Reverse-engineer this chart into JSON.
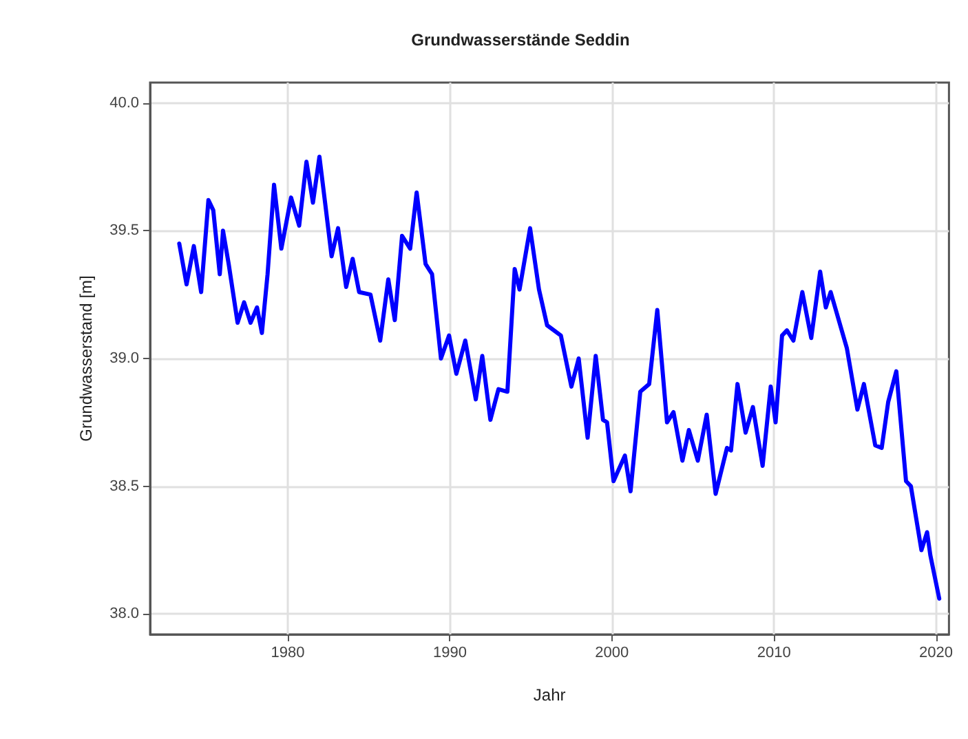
{
  "chart_data": {
    "type": "line",
    "title": "Grundwasserstände Seddin",
    "xlabel": "Jahr",
    "ylabel": "Grundwasserstand [m]",
    "xlim": [
      1971.5,
      2020.8
    ],
    "xticks": [
      1980,
      1990,
      2000,
      2010,
      2020
    ],
    "ylim": [
      37.92,
      40.08
    ],
    "yticks": [
      {
        "value": 38,
        "label": "38.0"
      },
      38.5,
      {
        "value": 39,
        "label": "39.0"
      },
      39.5,
      {
        "value": 40,
        "label": "40.0"
      }
    ],
    "grid": true,
    "marker": "none",
    "line_style": "solid",
    "series": [
      {
        "color": "#0000ff",
        "x": [
          1973.3,
          1973.75,
          1974.2,
          1974.65,
          1975.1,
          1975.4,
          1975.8,
          1976.0,
          1976.35,
          1976.9,
          1977.3,
          1977.7,
          1978.1,
          1978.4,
          1978.75,
          1979.15,
          1979.6,
          1980.2,
          1980.7,
          1981.15,
          1981.55,
          1981.95,
          1982.3,
          1982.7,
          1983.1,
          1983.6,
          1984.0,
          1984.4,
          1985.1,
          1985.7,
          1986.2,
          1986.6,
          1987.05,
          1987.55,
          1987.95,
          1988.5,
          1988.9,
          1989.45,
          1989.95,
          1990.4,
          1990.95,
          1991.6,
          1992.0,
          1992.5,
          1993.0,
          1993.55,
          1994.0,
          1994.3,
          1994.95,
          1995.5,
          1996.0,
          1996.85,
          1997.5,
          1997.95,
          1998.5,
          1999.0,
          1999.45,
          1999.7,
          2000.1,
          2000.8,
          2001.15,
          2001.75,
          2002.3,
          2002.8,
          2003.4,
          2003.8,
          2004.35,
          2004.75,
          2005.3,
          2005.85,
          2006.4,
          2007.1,
          2007.35,
          2007.75,
          2008.25,
          2008.7,
          2009.3,
          2009.8,
          2010.1,
          2010.5,
          2010.8,
          2011.2,
          2011.75,
          2012.3,
          2012.85,
          2013.2,
          2013.5,
          2014.5,
          2015.15,
          2015.55,
          2016.25,
          2016.65,
          2017.05,
          2017.55,
          2018.15,
          2018.45,
          2019.1,
          2019.45,
          2019.65,
          2020.2
        ],
        "values": [
          39.45,
          39.29,
          39.44,
          39.26,
          39.62,
          39.58,
          39.33,
          39.5,
          39.37,
          39.14,
          39.22,
          39.14,
          39.2,
          39.1,
          39.33,
          39.68,
          39.43,
          39.63,
          39.52,
          39.77,
          39.61,
          39.79,
          39.61,
          39.4,
          39.51,
          39.28,
          39.39,
          39.26,
          39.25,
          39.07,
          39.31,
          39.15,
          39.48,
          39.43,
          39.65,
          39.37,
          39.33,
          39.0,
          39.09,
          38.94,
          39.07,
          38.84,
          39.01,
          38.76,
          38.88,
          38.87,
          39.35,
          39.27,
          39.51,
          39.27,
          39.13,
          39.09,
          38.89,
          39.0,
          38.69,
          39.01,
          38.76,
          38.75,
          38.52,
          38.62,
          38.48,
          38.87,
          38.9,
          39.19,
          38.75,
          38.79,
          38.6,
          38.72,
          38.6,
          38.78,
          38.47,
          38.65,
          38.64,
          38.9,
          38.71,
          38.81,
          38.58,
          38.89,
          38.75,
          39.09,
          39.11,
          39.07,
          39.26,
          39.08,
          39.34,
          39.2,
          39.26,
          39.04,
          38.8,
          38.9,
          38.66,
          38.65,
          38.83,
          38.95,
          38.52,
          38.5,
          38.25,
          38.32,
          38.23,
          38.06
        ]
      }
    ]
  }
}
